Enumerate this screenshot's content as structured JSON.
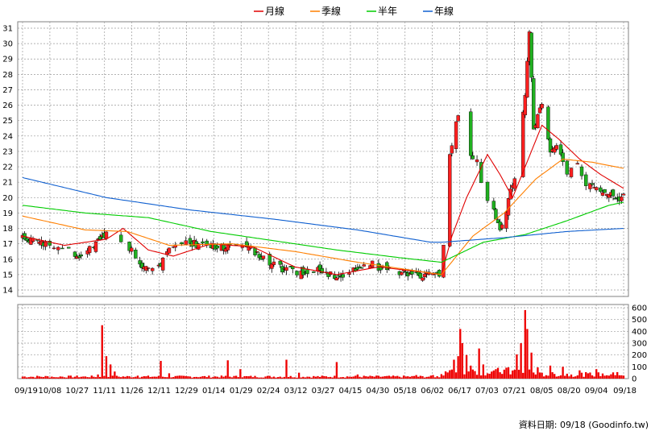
{
  "chart_data": {
    "type": "candlestick",
    "legend": [
      {
        "label": "月線",
        "color": "#e00000"
      },
      {
        "label": "季線",
        "color": "#ff7f00"
      },
      {
        "label": "半年",
        "color": "#00cc00"
      },
      {
        "label": "年線",
        "color": "#1060d0"
      }
    ],
    "x_tick_labels": [
      "09/19",
      "10/08",
      "10/27",
      "11/11",
      "11/26",
      "12/11",
      "12/29",
      "01/14",
      "01/29",
      "02/24",
      "03/12",
      "03/27",
      "04/15",
      "04/30",
      "05/18",
      "06/02",
      "06/17",
      "07/03",
      "07/21",
      "08/05",
      "08/20",
      "09/04",
      "09/18"
    ],
    "price_axis": {
      "min": 14,
      "max": 31,
      "ticks": [
        14,
        15,
        16,
        17,
        18,
        19,
        20,
        21,
        22,
        23,
        24,
        25,
        26,
        27,
        28,
        29,
        30,
        31
      ]
    },
    "volume_axis": {
      "min": 0,
      "max": 600,
      "ticks": [
        0,
        100,
        200,
        300,
        400,
        500,
        600
      ]
    },
    "source_note": "資料日期: 09/18 (Goodinfo.tw)",
    "colors": {
      "up": "#ff2020",
      "down": "#20b020",
      "volume": "#ee0000",
      "grid": "#9a9a9a",
      "wick": "#000000"
    },
    "close_points": [
      [
        0,
        17.4
      ],
      [
        6,
        17.2
      ],
      [
        12,
        16.9
      ],
      [
        20,
        16.6
      ],
      [
        28,
        16.3
      ],
      [
        35,
        16.9
      ],
      [
        40,
        17.8
      ],
      [
        44,
        19.8
      ],
      [
        47,
        17.2
      ],
      [
        52,
        16.5
      ],
      [
        56,
        15.6
      ],
      [
        60,
        15.2
      ],
      [
        64,
        15.2
      ],
      [
        70,
        16.8
      ],
      [
        76,
        17.2
      ],
      [
        82,
        17.0
      ],
      [
        88,
        16.9
      ],
      [
        94,
        16.7
      ],
      [
        100,
        17.1
      ],
      [
        106,
        16.9
      ],
      [
        112,
        16.3
      ],
      [
        118,
        15.8
      ],
      [
        124,
        15.4
      ],
      [
        130,
        15.2
      ],
      [
        136,
        15.1
      ],
      [
        142,
        15.4
      ],
      [
        148,
        14.9
      ],
      [
        154,
        15.1
      ],
      [
        160,
        15.5
      ],
      [
        166,
        15.7
      ],
      [
        172,
        15.4
      ],
      [
        178,
        15.2
      ],
      [
        184,
        15.1
      ],
      [
        190,
        15.0
      ],
      [
        196,
        14.9
      ],
      [
        200,
        15.0
      ],
      [
        204,
        22.8
      ],
      [
        208,
        25.5
      ],
      [
        212,
        22.0
      ],
      [
        216,
        23.0
      ],
      [
        220,
        20.5
      ],
      [
        224,
        19.6
      ],
      [
        228,
        17.8
      ],
      [
        232,
        19.8
      ],
      [
        236,
        22.0
      ],
      [
        240,
        26.8
      ],
      [
        242,
        30.8
      ],
      [
        244,
        24.5
      ],
      [
        248,
        26.0
      ],
      [
        252,
        23.0
      ],
      [
        256,
        23.5
      ],
      [
        260,
        21.5
      ],
      [
        264,
        22.5
      ],
      [
        268,
        21.0
      ],
      [
        272,
        20.8
      ],
      [
        276,
        20.5
      ],
      [
        280,
        20.3
      ],
      [
        284,
        19.9
      ],
      [
        287,
        20.1
      ]
    ],
    "ma_month": [
      [
        0,
        17.5
      ],
      [
        20,
        16.9
      ],
      [
        40,
        17.3
      ],
      [
        48,
        18.0
      ],
      [
        60,
        16.6
      ],
      [
        72,
        16.2
      ],
      [
        90,
        17.0
      ],
      [
        110,
        16.8
      ],
      [
        130,
        15.5
      ],
      [
        150,
        15.0
      ],
      [
        170,
        15.5
      ],
      [
        195,
        15.1
      ],
      [
        200,
        15.0
      ],
      [
        205,
        17.5
      ],
      [
        212,
        20.0
      ],
      [
        222,
        22.8
      ],
      [
        228,
        21.5
      ],
      [
        234,
        20.0
      ],
      [
        240,
        22.0
      ],
      [
        248,
        24.7
      ],
      [
        256,
        23.8
      ],
      [
        266,
        22.5
      ],
      [
        276,
        21.5
      ],
      [
        287,
        20.6
      ]
    ],
    "ma_quarter": [
      [
        0,
        18.8
      ],
      [
        30,
        17.9
      ],
      [
        50,
        17.8
      ],
      [
        70,
        16.9
      ],
      [
        100,
        17.0
      ],
      [
        130,
        16.5
      ],
      [
        160,
        15.8
      ],
      [
        195,
        15.1
      ],
      [
        200,
        15.0
      ],
      [
        215,
        17.5
      ],
      [
        230,
        19.0
      ],
      [
        245,
        21.2
      ],
      [
        258,
        22.5
      ],
      [
        272,
        22.3
      ],
      [
        287,
        21.9
      ]
    ],
    "ma_half": [
      [
        0,
        19.5
      ],
      [
        30,
        19.0
      ],
      [
        60,
        18.7
      ],
      [
        90,
        17.8
      ],
      [
        120,
        17.2
      ],
      [
        150,
        16.6
      ],
      [
        180,
        16.1
      ],
      [
        200,
        15.8
      ],
      [
        220,
        17.1
      ],
      [
        240,
        17.6
      ],
      [
        260,
        18.5
      ],
      [
        280,
        19.5
      ],
      [
        287,
        19.7
      ]
    ],
    "ma_year": [
      [
        0,
        21.3
      ],
      [
        40,
        20.0
      ],
      [
        80,
        19.2
      ],
      [
        120,
        18.6
      ],
      [
        160,
        17.9
      ],
      [
        195,
        17.1
      ],
      [
        200,
        17.1
      ],
      [
        230,
        17.4
      ],
      [
        260,
        17.8
      ],
      [
        287,
        18.0
      ]
    ],
    "volume_spikes": [
      [
        5,
        15
      ],
      [
        16,
        12
      ],
      [
        30,
        18
      ],
      [
        36,
        35
      ],
      [
        38,
        452
      ],
      [
        40,
        190
      ],
      [
        42,
        120
      ],
      [
        44,
        60
      ],
      [
        55,
        25
      ],
      [
        66,
        150
      ],
      [
        70,
        45
      ],
      [
        98,
        155
      ],
      [
        104,
        80
      ],
      [
        126,
        160
      ],
      [
        132,
        50
      ],
      [
        150,
        140
      ],
      [
        160,
        35
      ],
      [
        188,
        30
      ],
      [
        196,
        30
      ],
      [
        200,
        38
      ],
      [
        206,
        160
      ],
      [
        208,
        190
      ],
      [
        209,
        420
      ],
      [
        210,
        300
      ],
      [
        212,
        200
      ],
      [
        214,
        110
      ],
      [
        218,
        255
      ],
      [
        220,
        120
      ],
      [
        226,
        80
      ],
      [
        232,
        95
      ],
      [
        236,
        205
      ],
      [
        238,
        300
      ],
      [
        240,
        580
      ],
      [
        241,
        420
      ],
      [
        243,
        220
      ],
      [
        246,
        95
      ],
      [
        252,
        110
      ],
      [
        258,
        100
      ],
      [
        266,
        70
      ],
      [
        274,
        80
      ],
      [
        284,
        55
      ],
      [
        287,
        25
      ]
    ]
  }
}
